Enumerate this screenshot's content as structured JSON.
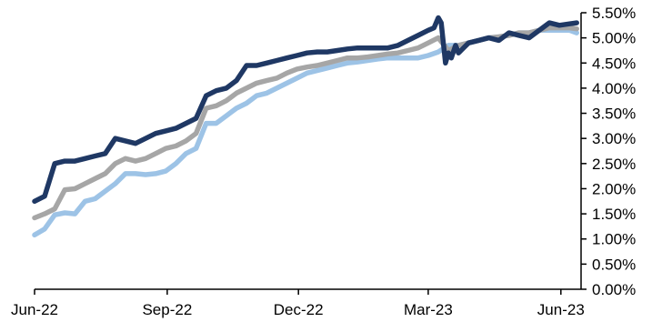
{
  "chart_data": {
    "type": "line",
    "title": "",
    "xlabel": "",
    "ylabel": "",
    "x_tick_labels": [
      "Jun-22",
      "Sep-22",
      "Dec-22",
      "Mar-23",
      "Jun-23"
    ],
    "x_tick_dates": [
      "2022-06-01",
      "2022-09-01",
      "2022-12-01",
      "2023-03-01",
      "2023-06-01"
    ],
    "xlim": [
      "2022-06-01",
      "2023-06-15"
    ],
    "y_tick_labels": [
      "0.00%",
      "0.50%",
      "1.00%",
      "1.50%",
      "2.00%",
      "2.50%",
      "3.00%",
      "3.50%",
      "4.00%",
      "4.50%",
      "5.00%",
      "5.50%"
    ],
    "ylim": [
      0,
      5.5
    ],
    "y_unit": "%",
    "grid": false,
    "axis_position": "right",
    "series": [
      {
        "color": "#9dc3e6",
        "points": [
          [
            "2022-06-01",
            1.08
          ],
          [
            "2022-06-08",
            1.2
          ],
          [
            "2022-06-15",
            1.48
          ],
          [
            "2022-06-22",
            1.52
          ],
          [
            "2022-06-29",
            1.5
          ],
          [
            "2022-07-06",
            1.75
          ],
          [
            "2022-07-13",
            1.8
          ],
          [
            "2022-07-20",
            1.95
          ],
          [
            "2022-07-27",
            2.1
          ],
          [
            "2022-08-03",
            2.3
          ],
          [
            "2022-08-10",
            2.3
          ],
          [
            "2022-08-17",
            2.28
          ],
          [
            "2022-08-24",
            2.3
          ],
          [
            "2022-08-31",
            2.35
          ],
          [
            "2022-09-07",
            2.5
          ],
          [
            "2022-09-14",
            2.7
          ],
          [
            "2022-09-21",
            2.8
          ],
          [
            "2022-09-28",
            3.3
          ],
          [
            "2022-10-05",
            3.3
          ],
          [
            "2022-10-12",
            3.45
          ],
          [
            "2022-10-19",
            3.6
          ],
          [
            "2022-10-26",
            3.7
          ],
          [
            "2022-11-02",
            3.85
          ],
          [
            "2022-11-09",
            3.9
          ],
          [
            "2022-11-16",
            4.0
          ],
          [
            "2022-11-23",
            4.1
          ],
          [
            "2022-11-30",
            4.2
          ],
          [
            "2022-12-07",
            4.3
          ],
          [
            "2022-12-14",
            4.35
          ],
          [
            "2022-12-21",
            4.4
          ],
          [
            "2022-12-28",
            4.45
          ],
          [
            "2023-01-04",
            4.5
          ],
          [
            "2023-01-11",
            4.52
          ],
          [
            "2023-01-18",
            4.55
          ],
          [
            "2023-01-25",
            4.58
          ],
          [
            "2023-02-01",
            4.6
          ],
          [
            "2023-02-08",
            4.6
          ],
          [
            "2023-02-15",
            4.6
          ],
          [
            "2023-02-22",
            4.6
          ],
          [
            "2023-03-01",
            4.65
          ],
          [
            "2023-03-08",
            4.72
          ],
          [
            "2023-03-15",
            4.85
          ],
          [
            "2023-03-22",
            4.85
          ],
          [
            "2023-03-29",
            4.9
          ],
          [
            "2023-04-05",
            4.95
          ],
          [
            "2023-04-12",
            5.0
          ],
          [
            "2023-04-19",
            5.02
          ],
          [
            "2023-04-26",
            5.05
          ],
          [
            "2023-05-03",
            5.1
          ],
          [
            "2023-05-10",
            5.1
          ],
          [
            "2023-05-17",
            5.15
          ],
          [
            "2023-05-24",
            5.15
          ],
          [
            "2023-05-31",
            5.15
          ],
          [
            "2023-06-07",
            5.15
          ],
          [
            "2023-06-12",
            5.1
          ]
        ]
      },
      {
        "color": "#a6a6a6",
        "points": [
          [
            "2022-06-01",
            1.42
          ],
          [
            "2022-06-08",
            1.5
          ],
          [
            "2022-06-15",
            1.6
          ],
          [
            "2022-06-22",
            1.98
          ],
          [
            "2022-06-29",
            2.0
          ],
          [
            "2022-07-06",
            2.1
          ],
          [
            "2022-07-13",
            2.2
          ],
          [
            "2022-07-20",
            2.3
          ],
          [
            "2022-07-27",
            2.5
          ],
          [
            "2022-08-03",
            2.6
          ],
          [
            "2022-08-10",
            2.55
          ],
          [
            "2022-08-17",
            2.6
          ],
          [
            "2022-08-24",
            2.7
          ],
          [
            "2022-08-31",
            2.8
          ],
          [
            "2022-09-07",
            2.85
          ],
          [
            "2022-09-14",
            2.95
          ],
          [
            "2022-09-21",
            3.1
          ],
          [
            "2022-09-28",
            3.6
          ],
          [
            "2022-10-05",
            3.65
          ],
          [
            "2022-10-12",
            3.75
          ],
          [
            "2022-10-19",
            3.9
          ],
          [
            "2022-10-26",
            4.0
          ],
          [
            "2022-11-02",
            4.1
          ],
          [
            "2022-11-09",
            4.15
          ],
          [
            "2022-11-16",
            4.2
          ],
          [
            "2022-11-23",
            4.3
          ],
          [
            "2022-11-30",
            4.38
          ],
          [
            "2022-12-07",
            4.42
          ],
          [
            "2022-12-14",
            4.45
          ],
          [
            "2022-12-21",
            4.5
          ],
          [
            "2022-12-28",
            4.55
          ],
          [
            "2023-01-04",
            4.6
          ],
          [
            "2023-01-11",
            4.6
          ],
          [
            "2023-01-18",
            4.62
          ],
          [
            "2023-01-25",
            4.65
          ],
          [
            "2023-02-01",
            4.68
          ],
          [
            "2023-02-08",
            4.7
          ],
          [
            "2023-02-15",
            4.75
          ],
          [
            "2023-02-22",
            4.8
          ],
          [
            "2023-03-01",
            4.9
          ],
          [
            "2023-03-08",
            5.0
          ],
          [
            "2023-03-15",
            4.75
          ],
          [
            "2023-03-22",
            4.85
          ],
          [
            "2023-03-29",
            4.9
          ],
          [
            "2023-04-05",
            4.95
          ],
          [
            "2023-04-12",
            5.0
          ],
          [
            "2023-04-19",
            5.02
          ],
          [
            "2023-04-26",
            5.05
          ],
          [
            "2023-05-03",
            5.1
          ],
          [
            "2023-05-10",
            5.1
          ],
          [
            "2023-05-17",
            5.15
          ],
          [
            "2023-05-24",
            5.2
          ],
          [
            "2023-05-31",
            5.2
          ],
          [
            "2023-06-07",
            5.2
          ],
          [
            "2023-06-12",
            5.18
          ]
        ]
      },
      {
        "color": "#1f3864",
        "points": [
          [
            "2022-06-01",
            1.75
          ],
          [
            "2022-06-08",
            1.85
          ],
          [
            "2022-06-15",
            2.5
          ],
          [
            "2022-06-22",
            2.55
          ],
          [
            "2022-06-29",
            2.55
          ],
          [
            "2022-07-06",
            2.6
          ],
          [
            "2022-07-13",
            2.65
          ],
          [
            "2022-07-20",
            2.7
          ],
          [
            "2022-07-27",
            3.0
          ],
          [
            "2022-08-03",
            2.95
          ],
          [
            "2022-08-10",
            2.9
          ],
          [
            "2022-08-17",
            3.0
          ],
          [
            "2022-08-24",
            3.1
          ],
          [
            "2022-08-31",
            3.15
          ],
          [
            "2022-09-07",
            3.2
          ],
          [
            "2022-09-14",
            3.3
          ],
          [
            "2022-09-21",
            3.4
          ],
          [
            "2022-09-28",
            3.85
          ],
          [
            "2022-10-05",
            3.95
          ],
          [
            "2022-10-12",
            4.0
          ],
          [
            "2022-10-19",
            4.15
          ],
          [
            "2022-10-26",
            4.45
          ],
          [
            "2022-11-02",
            4.45
          ],
          [
            "2022-11-09",
            4.5
          ],
          [
            "2022-11-16",
            4.55
          ],
          [
            "2022-11-23",
            4.6
          ],
          [
            "2022-11-30",
            4.65
          ],
          [
            "2022-12-07",
            4.7
          ],
          [
            "2022-12-14",
            4.72
          ],
          [
            "2022-12-21",
            4.72
          ],
          [
            "2022-12-28",
            4.75
          ],
          [
            "2023-01-04",
            4.78
          ],
          [
            "2023-01-11",
            4.8
          ],
          [
            "2023-01-18",
            4.8
          ],
          [
            "2023-01-25",
            4.8
          ],
          [
            "2023-02-01",
            4.8
          ],
          [
            "2023-02-08",
            4.85
          ],
          [
            "2023-02-15",
            4.95
          ],
          [
            "2023-02-22",
            5.05
          ],
          [
            "2023-03-01",
            5.15
          ],
          [
            "2023-03-05",
            5.2
          ],
          [
            "2023-03-08",
            5.4
          ],
          [
            "2023-03-10",
            5.3
          ],
          [
            "2023-03-13",
            4.5
          ],
          [
            "2023-03-15",
            4.7
          ],
          [
            "2023-03-17",
            4.6
          ],
          [
            "2023-03-20",
            4.85
          ],
          [
            "2023-03-22",
            4.7
          ],
          [
            "2023-03-29",
            4.9
          ],
          [
            "2023-04-05",
            4.95
          ],
          [
            "2023-04-12",
            5.0
          ],
          [
            "2023-04-19",
            4.95
          ],
          [
            "2023-04-26",
            5.1
          ],
          [
            "2023-05-03",
            5.05
          ],
          [
            "2023-05-10",
            5.0
          ],
          [
            "2023-05-17",
            5.15
          ],
          [
            "2023-05-24",
            5.3
          ],
          [
            "2023-05-31",
            5.25
          ],
          [
            "2023-06-07",
            5.28
          ],
          [
            "2023-06-12",
            5.3
          ]
        ]
      }
    ]
  }
}
